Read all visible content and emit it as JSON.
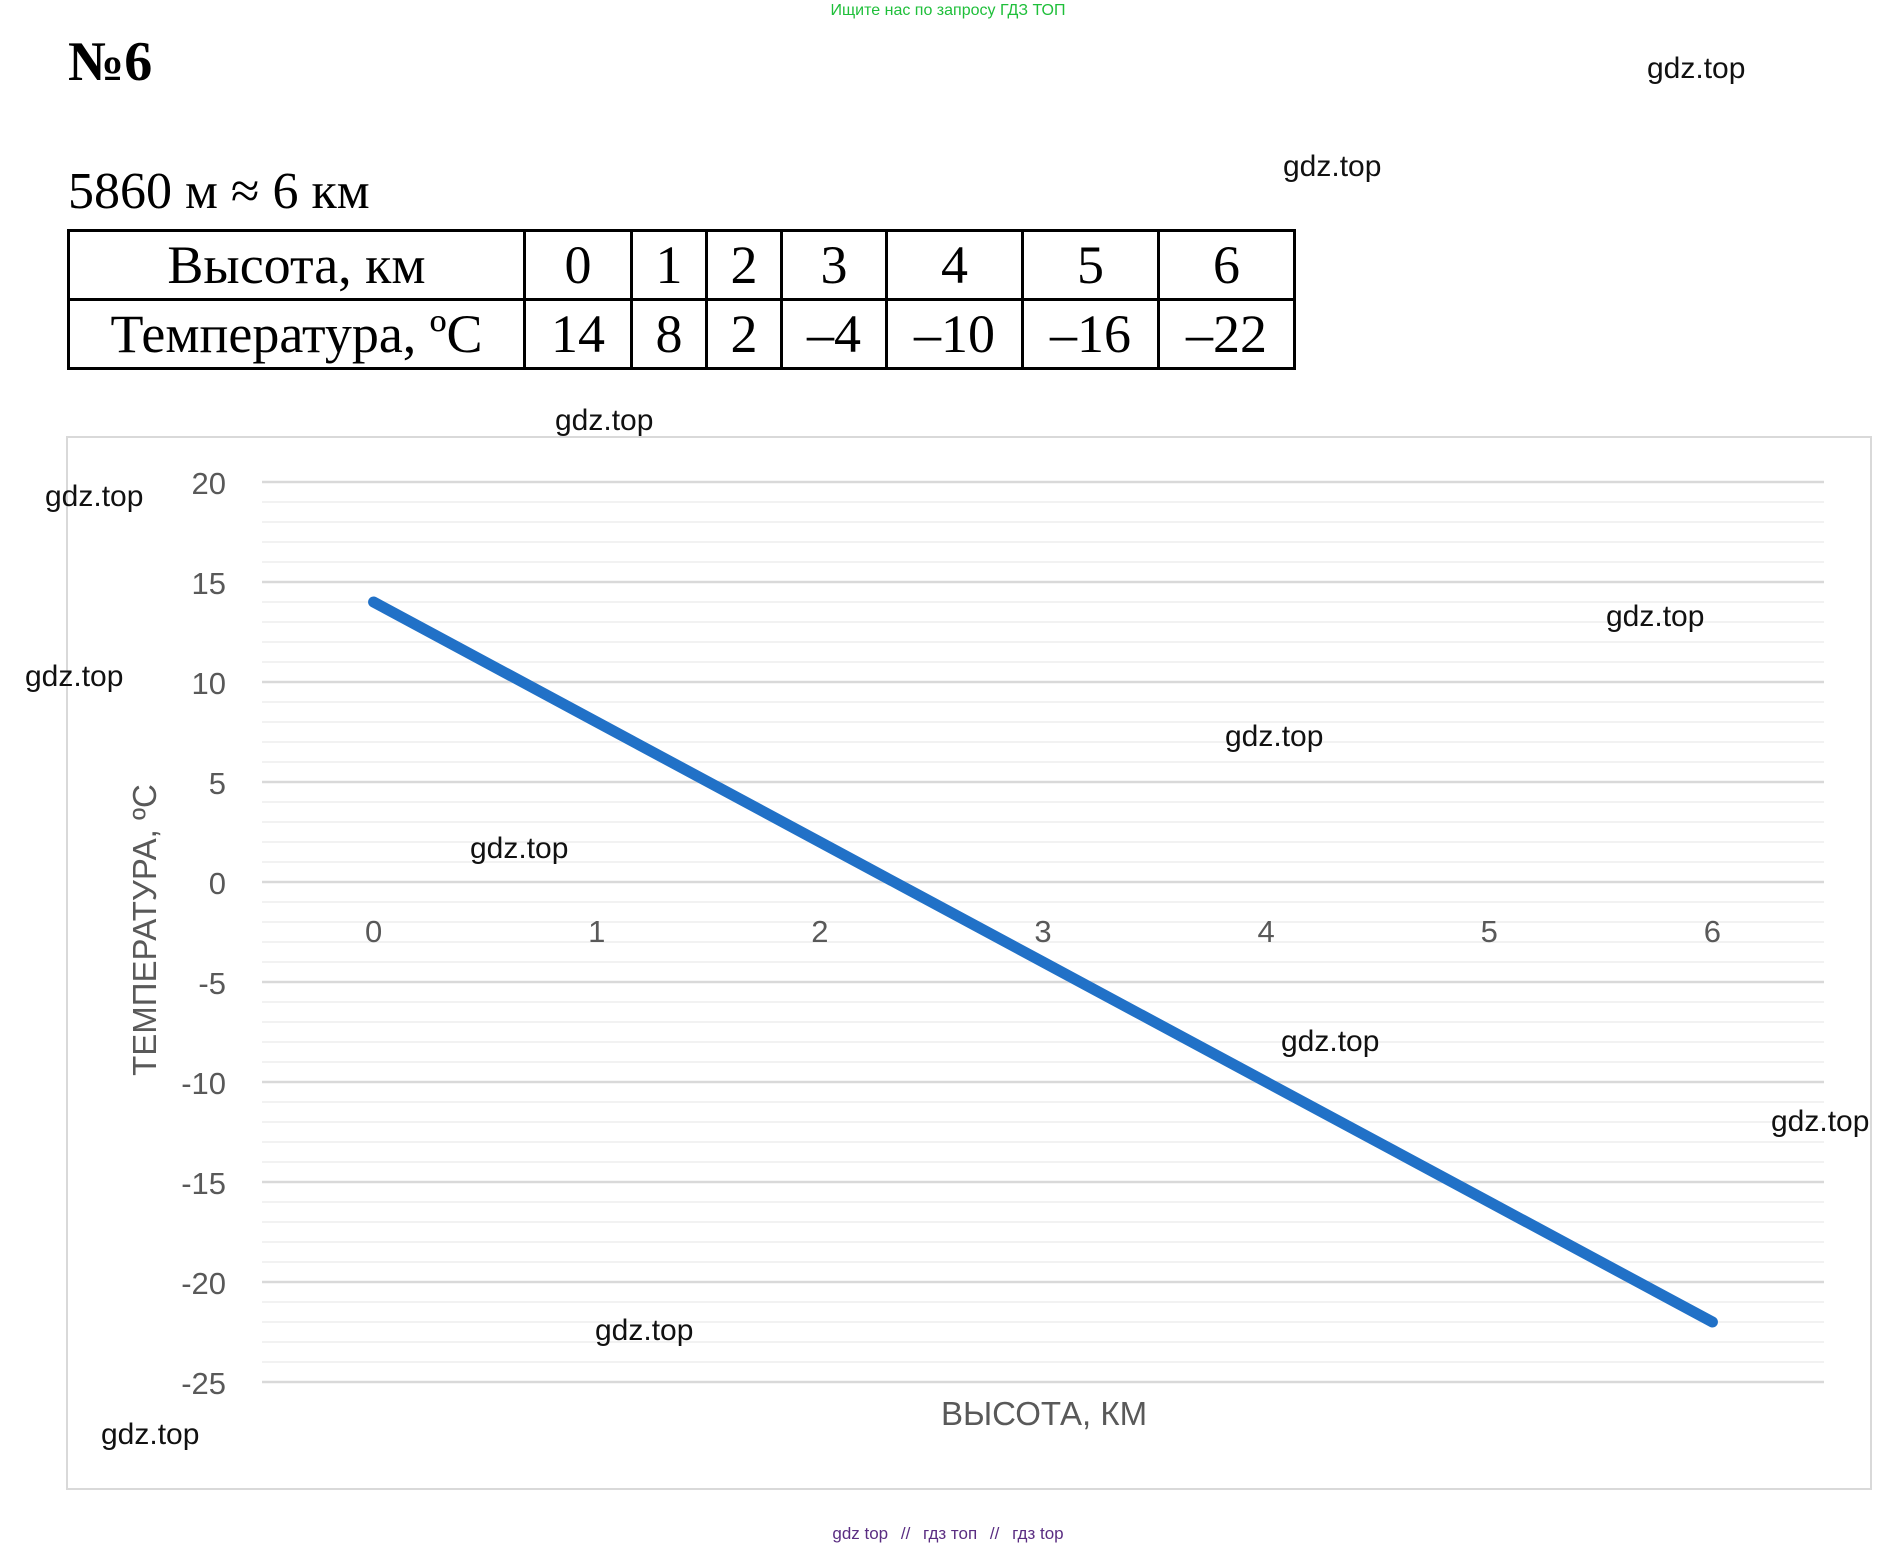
{
  "banner": "Ищите нас по запросу ГДЗ ТОП",
  "task_number": "№6",
  "conversion": "5860 м ≈ 6 км",
  "table": {
    "rows": [
      {
        "header": "Высота, км",
        "cells": [
          "0",
          "1",
          "2",
          "3",
          "4",
          "5",
          "6"
        ]
      },
      {
        "header": "Температура, ºС",
        "cells": [
          "14",
          "8",
          "2",
          "–4",
          "–10",
          "–16",
          "–22"
        ]
      }
    ]
  },
  "watermark_text": "gdz.top",
  "chart_data": {
    "type": "line",
    "x": [
      0,
      1,
      2,
      3,
      4,
      5,
      6
    ],
    "series": [
      {
        "values": [
          14,
          8,
          2,
          -4,
          -10,
          -16,
          -22
        ],
        "color": "#2171c7"
      }
    ],
    "xlabel": "ВЫСОТА, КМ",
    "ylabel": "ТЕМПЕРАТУРА, ºС",
    "x_tick_labels": [
      "0",
      "1",
      "2",
      "3",
      "4",
      "5",
      "6"
    ],
    "y_tick_labels": [
      "20",
      "15",
      "10",
      "5",
      "0",
      "-5",
      "-10",
      "-15",
      "-20",
      "-25"
    ],
    "ylim": [
      -25,
      20
    ],
    "xlim": [
      -0.5,
      6.5
    ],
    "grid": true,
    "minor_grid_step": 1,
    "major_grid_step": 5
  },
  "footer": {
    "links": [
      "gdz top",
      "гдз топ",
      "гдз top"
    ],
    "separator": "//"
  }
}
